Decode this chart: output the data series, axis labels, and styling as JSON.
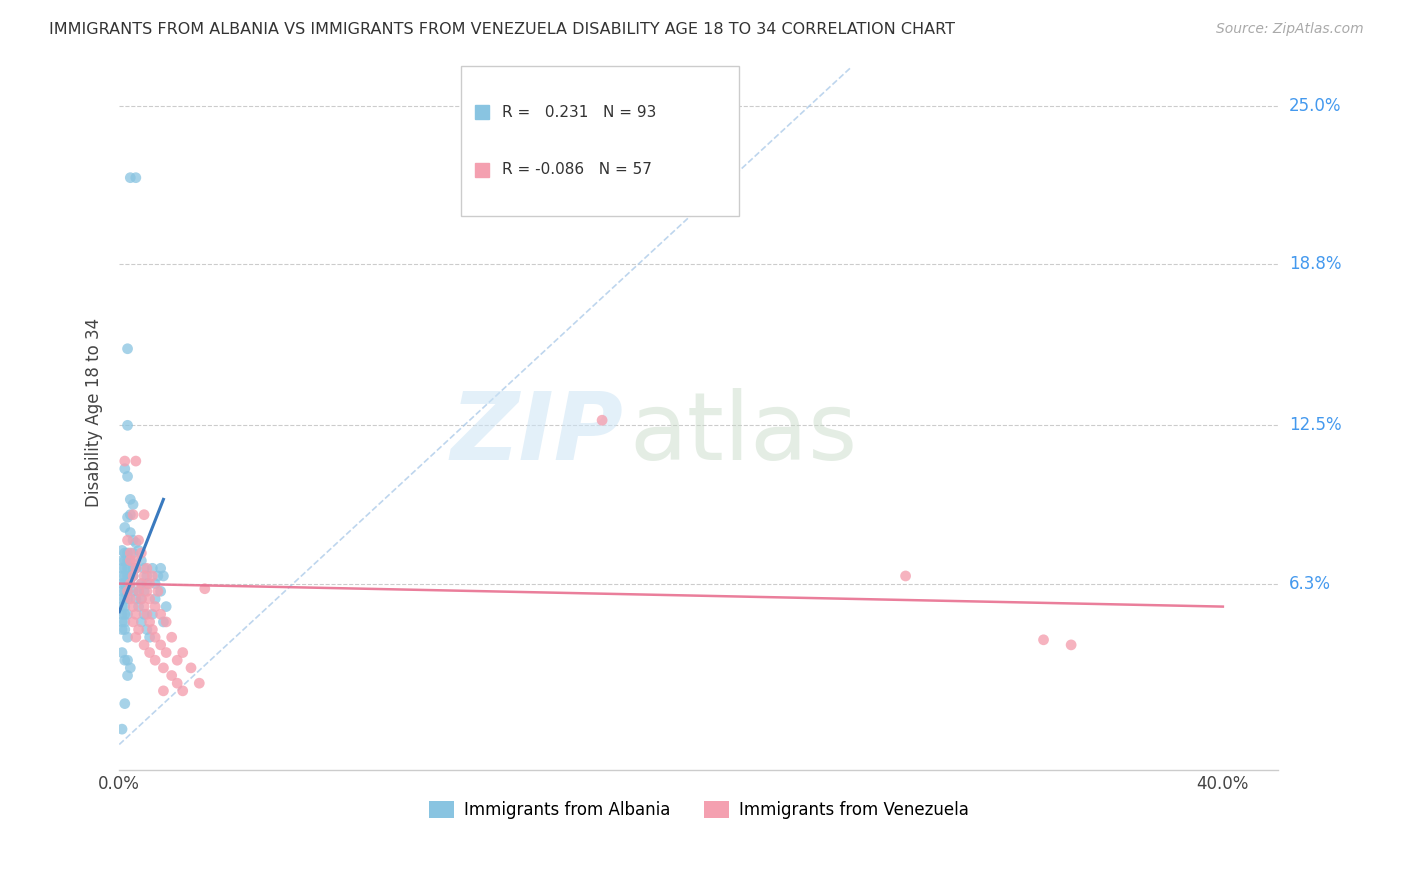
{
  "title": "IMMIGRANTS FROM ALBANIA VS IMMIGRANTS FROM VENEZUELA DISABILITY AGE 18 TO 34 CORRELATION CHART",
  "source": "Source: ZipAtlas.com",
  "ylabel": "Disability Age 18 to 34",
  "ytick_labels": [
    "6.3%",
    "12.5%",
    "18.8%",
    "25.0%"
  ],
  "ytick_values": [
    0.063,
    0.125,
    0.188,
    0.25
  ],
  "xlim": [
    0.0,
    0.42
  ],
  "ylim": [
    -0.01,
    0.27
  ],
  "albania_color": "#89c4e1",
  "venezuela_color": "#f4a0b0",
  "albania_line_color": "#3a7abf",
  "venezuela_line_color": "#e87090",
  "diag_line_color": "#a8c8e8",
  "r_albania": 0.231,
  "n_albania": 93,
  "r_venezuela": -0.086,
  "n_venezuela": 57,
  "legend_label_albania": "Immigrants from Albania",
  "legend_label_venezuela": "Immigrants from Venezuela",
  "albania_line_x": [
    0.0,
    0.016
  ],
  "albania_line_y": [
    0.052,
    0.096
  ],
  "venezuela_line_x": [
    0.0,
    0.4
  ],
  "venezuela_line_y": [
    0.063,
    0.054
  ],
  "diag_line_x": [
    0.0,
    0.265
  ],
  "diag_line_y": [
    0.0,
    0.265
  ],
  "albania_points": [
    [
      0.004,
      0.222
    ],
    [
      0.006,
      0.222
    ],
    [
      0.003,
      0.155
    ],
    [
      0.003,
      0.125
    ],
    [
      0.002,
      0.108
    ],
    [
      0.003,
      0.105
    ],
    [
      0.004,
      0.096
    ],
    [
      0.005,
      0.094
    ],
    [
      0.004,
      0.09
    ],
    [
      0.003,
      0.089
    ],
    [
      0.002,
      0.085
    ],
    [
      0.004,
      0.083
    ],
    [
      0.005,
      0.08
    ],
    [
      0.006,
      0.079
    ],
    [
      0.001,
      0.076
    ],
    [
      0.002,
      0.075
    ],
    [
      0.003,
      0.075
    ],
    [
      0.005,
      0.075
    ],
    [
      0.001,
      0.072
    ],
    [
      0.002,
      0.072
    ],
    [
      0.003,
      0.072
    ],
    [
      0.004,
      0.072
    ],
    [
      0.001,
      0.069
    ],
    [
      0.002,
      0.069
    ],
    [
      0.003,
      0.069
    ],
    [
      0.005,
      0.069
    ],
    [
      0.006,
      0.069
    ],
    [
      0.001,
      0.066
    ],
    [
      0.002,
      0.066
    ],
    [
      0.003,
      0.066
    ],
    [
      0.004,
      0.066
    ],
    [
      0.005,
      0.066
    ],
    [
      0.001,
      0.063
    ],
    [
      0.002,
      0.063
    ],
    [
      0.003,
      0.063
    ],
    [
      0.004,
      0.063
    ],
    [
      0.001,
      0.06
    ],
    [
      0.002,
      0.06
    ],
    [
      0.003,
      0.06
    ],
    [
      0.005,
      0.06
    ],
    [
      0.001,
      0.057
    ],
    [
      0.002,
      0.057
    ],
    [
      0.003,
      0.057
    ],
    [
      0.001,
      0.054
    ],
    [
      0.002,
      0.054
    ],
    [
      0.001,
      0.051
    ],
    [
      0.002,
      0.051
    ],
    [
      0.003,
      0.051
    ],
    [
      0.001,
      0.048
    ],
    [
      0.002,
      0.048
    ],
    [
      0.001,
      0.045
    ],
    [
      0.002,
      0.045
    ],
    [
      0.003,
      0.042
    ],
    [
      0.001,
      0.036
    ],
    [
      0.002,
      0.033
    ],
    [
      0.003,
      0.033
    ],
    [
      0.004,
      0.03
    ],
    [
      0.003,
      0.027
    ],
    [
      0.002,
      0.016
    ],
    [
      0.001,
      0.006
    ],
    [
      0.007,
      0.076
    ],
    [
      0.008,
      0.072
    ],
    [
      0.009,
      0.069
    ],
    [
      0.01,
      0.066
    ],
    [
      0.008,
      0.063
    ],
    [
      0.01,
      0.063
    ],
    [
      0.007,
      0.06
    ],
    [
      0.009,
      0.06
    ],
    [
      0.006,
      0.057
    ],
    [
      0.008,
      0.057
    ],
    [
      0.007,
      0.054
    ],
    [
      0.009,
      0.051
    ],
    [
      0.008,
      0.048
    ],
    [
      0.01,
      0.045
    ],
    [
      0.011,
      0.042
    ],
    [
      0.012,
      0.069
    ],
    [
      0.015,
      0.069
    ],
    [
      0.014,
      0.066
    ],
    [
      0.016,
      0.066
    ],
    [
      0.013,
      0.063
    ],
    [
      0.015,
      0.06
    ],
    [
      0.013,
      0.057
    ],
    [
      0.017,
      0.054
    ],
    [
      0.012,
      0.051
    ],
    [
      0.016,
      0.048
    ]
  ],
  "venezuela_points": [
    [
      0.002,
      0.111
    ],
    [
      0.006,
      0.111
    ],
    [
      0.005,
      0.09
    ],
    [
      0.009,
      0.09
    ],
    [
      0.003,
      0.08
    ],
    [
      0.007,
      0.08
    ],
    [
      0.004,
      0.075
    ],
    [
      0.008,
      0.075
    ],
    [
      0.004,
      0.072
    ],
    [
      0.006,
      0.072
    ],
    [
      0.006,
      0.069
    ],
    [
      0.01,
      0.069
    ],
    [
      0.005,
      0.066
    ],
    [
      0.009,
      0.066
    ],
    [
      0.012,
      0.066
    ],
    [
      0.004,
      0.063
    ],
    [
      0.008,
      0.063
    ],
    [
      0.011,
      0.063
    ],
    [
      0.003,
      0.06
    ],
    [
      0.007,
      0.06
    ],
    [
      0.01,
      0.06
    ],
    [
      0.014,
      0.06
    ],
    [
      0.004,
      0.057
    ],
    [
      0.008,
      0.057
    ],
    [
      0.011,
      0.057
    ],
    [
      0.005,
      0.054
    ],
    [
      0.009,
      0.054
    ],
    [
      0.013,
      0.054
    ],
    [
      0.006,
      0.051
    ],
    [
      0.01,
      0.051
    ],
    [
      0.015,
      0.051
    ],
    [
      0.005,
      0.048
    ],
    [
      0.011,
      0.048
    ],
    [
      0.017,
      0.048
    ],
    [
      0.007,
      0.045
    ],
    [
      0.012,
      0.045
    ],
    [
      0.006,
      0.042
    ],
    [
      0.013,
      0.042
    ],
    [
      0.019,
      0.042
    ],
    [
      0.009,
      0.039
    ],
    [
      0.015,
      0.039
    ],
    [
      0.011,
      0.036
    ],
    [
      0.017,
      0.036
    ],
    [
      0.023,
      0.036
    ],
    [
      0.013,
      0.033
    ],
    [
      0.021,
      0.033
    ],
    [
      0.016,
      0.03
    ],
    [
      0.026,
      0.03
    ],
    [
      0.019,
      0.027
    ],
    [
      0.021,
      0.024
    ],
    [
      0.029,
      0.024
    ],
    [
      0.016,
      0.021
    ],
    [
      0.023,
      0.021
    ],
    [
      0.031,
      0.061
    ],
    [
      0.285,
      0.066
    ],
    [
      0.335,
      0.041
    ],
    [
      0.345,
      0.039
    ],
    [
      0.175,
      0.127
    ]
  ]
}
